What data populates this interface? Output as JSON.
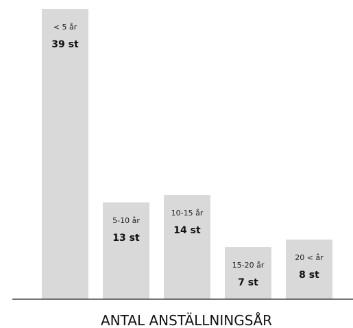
{
  "chart_data": {
    "type": "bar",
    "categories": [
      "< 5 år",
      "5-10 år",
      "10-15 år",
      "15-20 år",
      "20 < år"
    ],
    "values": [
      39,
      13,
      14,
      7,
      8
    ],
    "value_labels": [
      "39 st",
      "13 st",
      "14 st",
      "7 st",
      "8 st"
    ],
    "xlabel": "ANTAL ANSTÄLLNINGSÅR",
    "ylabel": "",
    "title": "",
    "ylim": [
      0,
      39
    ],
    "grid": false,
    "legend": "none"
  },
  "colors": {
    "bar": "#d9d9d9",
    "axis": "#222222",
    "text": "#111111"
  }
}
